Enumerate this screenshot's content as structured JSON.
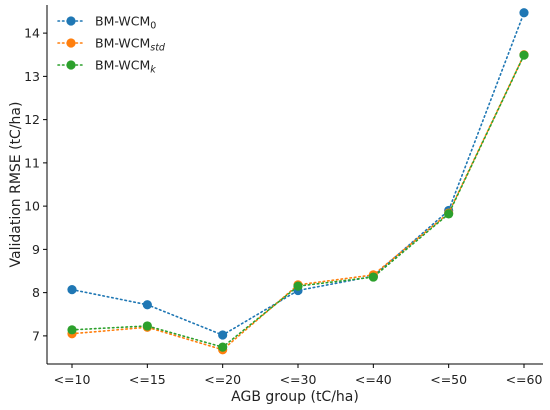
{
  "chart_data": {
    "type": "line",
    "title": "",
    "xlabel": "AGB group (tC/ha)",
    "ylabel": "Validation RMSE (tC/ha)",
    "categories": [
      "<=10",
      "<=15",
      "<=20",
      "<=30",
      "<=40",
      "<=50",
      "<=60"
    ],
    "ylim": [
      6.35,
      14.65
    ],
    "yticks": [
      7,
      8,
      9,
      10,
      11,
      12,
      13,
      14
    ],
    "grid": false,
    "legend_position": "top-left",
    "line_style": "dotted",
    "series": [
      {
        "name": "BM-WCM",
        "subscript": "0",
        "subscript_italic": false,
        "color": "#1f77b4",
        "values": [
          8.07,
          7.72,
          7.02,
          8.05,
          8.38,
          9.9,
          14.47
        ]
      },
      {
        "name": "BM-WCM",
        "subscript": "std",
        "subscript_italic": true,
        "color": "#ff7f0e",
        "values": [
          7.05,
          7.2,
          6.68,
          8.18,
          8.41,
          9.84,
          13.5
        ]
      },
      {
        "name": "BM-WCM",
        "subscript": "k",
        "subscript_italic": true,
        "color": "#2ca02c",
        "values": [
          7.14,
          7.23,
          6.74,
          8.15,
          8.36,
          9.82,
          13.49
        ]
      }
    ]
  }
}
